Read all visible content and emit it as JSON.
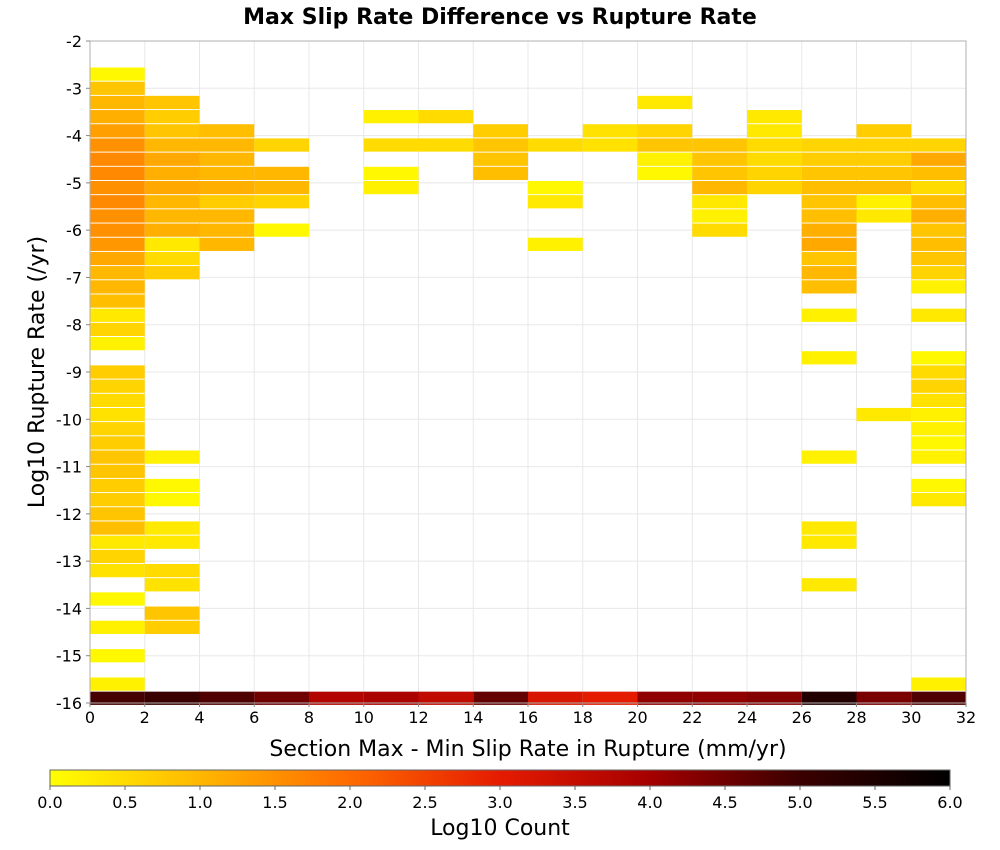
{
  "chart_data": {
    "type": "heatmap",
    "title": "Max Slip Rate Difference vs Rupture Rate",
    "xlabel": "Section Max - Min Slip Rate in Rupture (mm/yr)",
    "ylabel": "Log10 Rupture Rate (/yr)",
    "xlim": [
      0,
      32
    ],
    "ylim": [
      -16,
      -2
    ],
    "x_ticks": [
      "0",
      "2",
      "4",
      "6",
      "8",
      "10",
      "12",
      "14",
      "16",
      "18",
      "20",
      "22",
      "24",
      "26",
      "28",
      "30",
      "32"
    ],
    "y_ticks": [
      "-2",
      "-3",
      "-4",
      "-5",
      "-6",
      "-7",
      "-8",
      "-9",
      "-10",
      "-11",
      "-12",
      "-13",
      "-14",
      "-15",
      "-16"
    ],
    "x_bin_width": 2,
    "y_bin_width": 0.28,
    "grid": true,
    "colorbar": {
      "label": "Log10 Count",
      "range": [
        0,
        6
      ],
      "ticks": [
        "0.0",
        "0.5",
        "1.0",
        "1.5",
        "2.0",
        "2.5",
        "3.0",
        "3.5",
        "4.0",
        "4.5",
        "5.0",
        "5.5",
        "6.0"
      ],
      "colors": [
        "#ffff00",
        "#ffb700",
        "#ff6a00",
        "#e51b00",
        "#a50000",
        "#3a0000",
        "#000000"
      ]
    },
    "columns": [
      {
        "x0": 0,
        "cells": [
          [
            -2.7,
            0.1
          ],
          [
            -3.0,
            0.8
          ],
          [
            -3.3,
            1.0
          ],
          [
            -3.6,
            1.1
          ],
          [
            -3.9,
            1.3
          ],
          [
            -4.2,
            1.5
          ],
          [
            -4.5,
            1.6
          ],
          [
            -4.8,
            1.6
          ],
          [
            -5.1,
            1.5
          ],
          [
            -5.4,
            1.6
          ],
          [
            -5.7,
            1.5
          ],
          [
            -6.0,
            1.5
          ],
          [
            -6.3,
            1.4
          ],
          [
            -6.6,
            1.2
          ],
          [
            -6.9,
            1.0
          ],
          [
            -7.2,
            1.0
          ],
          [
            -7.5,
            0.9
          ],
          [
            -7.8,
            0.3
          ],
          [
            -8.1,
            0.6
          ],
          [
            -8.4,
            0.2
          ],
          [
            -9.0,
            0.7
          ],
          [
            -9.3,
            0.6
          ],
          [
            -9.6,
            0.5
          ],
          [
            -9.9,
            0.4
          ],
          [
            -10.2,
            0.6
          ],
          [
            -10.5,
            0.7
          ],
          [
            -10.8,
            0.8
          ],
          [
            -11.1,
            0.8
          ],
          [
            -11.4,
            0.7
          ],
          [
            -11.7,
            0.7
          ],
          [
            -12.0,
            0.8
          ],
          [
            -12.3,
            0.9
          ],
          [
            -12.6,
            0.3
          ],
          [
            -12.9,
            0.6
          ],
          [
            -13.2,
            0.4
          ],
          [
            -13.8,
            0.1
          ],
          [
            -14.4,
            0.2
          ],
          [
            -15.0,
            0.1
          ],
          [
            -15.6,
            0.2
          ],
          [
            -15.9,
            4.9
          ]
        ]
      },
      {
        "x0": 2,
        "cells": [
          [
            -3.3,
            0.8
          ],
          [
            -3.6,
            0.7
          ],
          [
            -3.9,
            0.8
          ],
          [
            -4.2,
            1.0
          ],
          [
            -4.5,
            1.2
          ],
          [
            -4.8,
            1.1
          ],
          [
            -5.1,
            1.2
          ],
          [
            -5.4,
            1.0
          ],
          [
            -5.7,
            1.0
          ],
          [
            -6.0,
            1.1
          ],
          [
            -6.3,
            0.3
          ],
          [
            -6.6,
            0.5
          ],
          [
            -6.9,
            0.7
          ],
          [
            -10.8,
            0.2
          ],
          [
            -11.4,
            0.1
          ],
          [
            -11.7,
            0.1
          ],
          [
            -12.3,
            0.3
          ],
          [
            -12.6,
            0.3
          ],
          [
            -13.2,
            0.5
          ],
          [
            -13.5,
            0.4
          ],
          [
            -14.1,
            0.8
          ],
          [
            -14.4,
            0.7
          ],
          [
            -15.9,
            5.0
          ]
        ]
      },
      {
        "x0": 4,
        "cells": [
          [
            -3.9,
            0.9
          ],
          [
            -4.2,
            1.0
          ],
          [
            -4.5,
            1.0
          ],
          [
            -4.8,
            1.0
          ],
          [
            -5.1,
            1.1
          ],
          [
            -5.4,
            0.7
          ],
          [
            -5.7,
            1.0
          ],
          [
            -6.0,
            1.0
          ],
          [
            -6.3,
            1.0
          ],
          [
            -15.9,
            4.8
          ]
        ]
      },
      {
        "x0": 6,
        "cells": [
          [
            -4.2,
            0.6
          ],
          [
            -4.8,
            1.0
          ],
          [
            -5.1,
            1.0
          ],
          [
            -5.4,
            0.6
          ],
          [
            -6.0,
            0.1
          ],
          [
            -15.9,
            4.5
          ]
        ]
      },
      {
        "x0": 8,
        "cells": [
          [
            -15.9,
            3.8
          ]
        ]
      },
      {
        "x0": 10,
        "cells": [
          [
            -3.6,
            0.2
          ],
          [
            -4.2,
            0.5
          ],
          [
            -4.8,
            0.1
          ],
          [
            -5.1,
            0.2
          ],
          [
            -15.9,
            3.9
          ]
        ]
      },
      {
        "x0": 12,
        "cells": [
          [
            -3.6,
            0.5
          ],
          [
            -4.2,
            0.5
          ],
          [
            -15.9,
            3.6
          ]
        ]
      },
      {
        "x0": 14,
        "cells": [
          [
            -3.9,
            0.7
          ],
          [
            -4.2,
            0.8
          ],
          [
            -4.5,
            0.8
          ],
          [
            -4.8,
            0.9
          ],
          [
            -15.9,
            4.6
          ]
        ]
      },
      {
        "x0": 16,
        "cells": [
          [
            -4.2,
            0.5
          ],
          [
            -5.1,
            0.1
          ],
          [
            -5.4,
            0.3
          ],
          [
            -6.3,
            0.2
          ],
          [
            -15.9,
            3.2
          ]
        ]
      },
      {
        "x0": 18,
        "cells": [
          [
            -3.9,
            0.4
          ],
          [
            -4.2,
            0.4
          ],
          [
            -15.9,
            3.0
          ]
        ]
      },
      {
        "x0": 20,
        "cells": [
          [
            -3.3,
            0.3
          ],
          [
            -3.9,
            0.6
          ],
          [
            -4.2,
            0.8
          ],
          [
            -4.5,
            0.2
          ],
          [
            -4.8,
            0.1
          ],
          [
            -15.9,
            4.2
          ]
        ]
      },
      {
        "x0": 22,
        "cells": [
          [
            -4.2,
            0.8
          ],
          [
            -4.5,
            0.8
          ],
          [
            -4.8,
            0.8
          ],
          [
            -5.1,
            1.0
          ],
          [
            -5.4,
            0.3
          ],
          [
            -5.7,
            0.2
          ],
          [
            -6.0,
            0.5
          ],
          [
            -15.9,
            4.2
          ]
        ]
      },
      {
        "x0": 24,
        "cells": [
          [
            -3.6,
            0.3
          ],
          [
            -3.9,
            0.3
          ],
          [
            -4.2,
            0.5
          ],
          [
            -4.5,
            0.5
          ],
          [
            -4.8,
            0.6
          ],
          [
            -5.1,
            0.6
          ],
          [
            -15.9,
            4.3
          ]
        ]
      },
      {
        "x0": 26,
        "cells": [
          [
            -4.2,
            0.6
          ],
          [
            -4.5,
            0.7
          ],
          [
            -4.8,
            0.8
          ],
          [
            -5.1,
            0.9
          ],
          [
            -5.4,
            0.8
          ],
          [
            -5.7,
            0.9
          ],
          [
            -6.0,
            1.1
          ],
          [
            -6.3,
            1.2
          ],
          [
            -6.6,
            0.8
          ],
          [
            -6.9,
            1.0
          ],
          [
            -7.2,
            0.9
          ],
          [
            -7.8,
            0.2
          ],
          [
            -8.7,
            0.2
          ],
          [
            -10.8,
            0.2
          ],
          [
            -12.3,
            0.3
          ],
          [
            -12.6,
            0.3
          ],
          [
            -13.5,
            0.3
          ],
          [
            -15.9,
            5.4
          ]
        ]
      },
      {
        "x0": 28,
        "cells": [
          [
            -3.9,
            0.7
          ],
          [
            -4.2,
            0.6
          ],
          [
            -4.5,
            0.7
          ],
          [
            -4.8,
            0.8
          ],
          [
            -5.1,
            0.9
          ],
          [
            -5.4,
            0.2
          ],
          [
            -5.7,
            0.3
          ],
          [
            -9.9,
            0.3
          ],
          [
            -15.9,
            4.4
          ]
        ]
      },
      {
        "x0": 30,
        "cells": [
          [
            -4.2,
            0.6
          ],
          [
            -4.5,
            1.2
          ],
          [
            -4.8,
            0.9
          ],
          [
            -5.1,
            0.5
          ],
          [
            -5.4,
            0.9
          ],
          [
            -5.7,
            1.1
          ],
          [
            -6.0,
            0.8
          ],
          [
            -6.3,
            0.9
          ],
          [
            -6.6,
            0.8
          ],
          [
            -6.9,
            0.6
          ],
          [
            -7.2,
            0.2
          ],
          [
            -7.8,
            0.3
          ],
          [
            -8.7,
            0.1
          ],
          [
            -9.0,
            0.5
          ],
          [
            -9.3,
            0.6
          ],
          [
            -9.6,
            0.4
          ],
          [
            -9.9,
            0.2
          ],
          [
            -10.2,
            0.2
          ],
          [
            -10.5,
            0.1
          ],
          [
            -10.8,
            0.2
          ],
          [
            -11.4,
            0.1
          ],
          [
            -11.7,
            0.3
          ],
          [
            -15.6,
            0.2
          ],
          [
            -15.9,
            4.8
          ]
        ]
      }
    ]
  }
}
